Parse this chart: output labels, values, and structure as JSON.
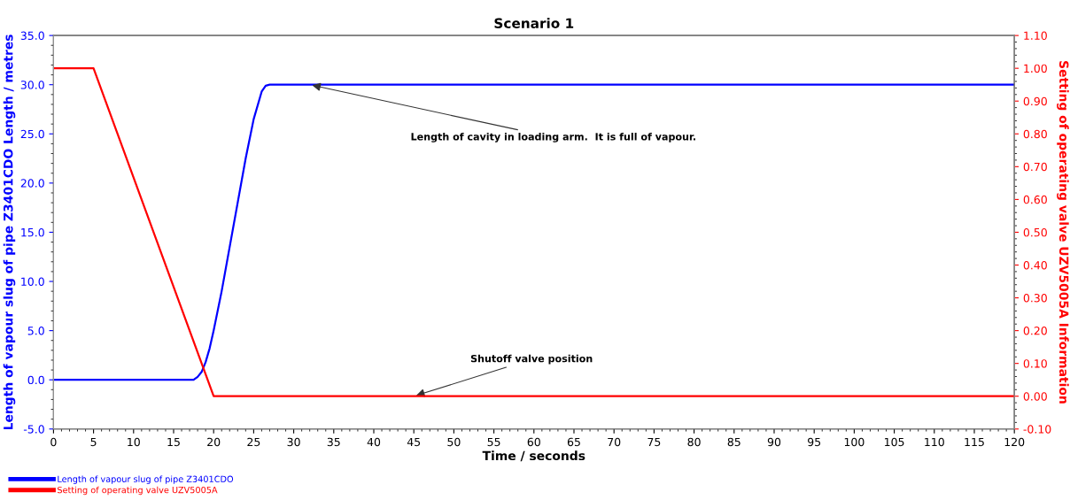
{
  "chart_data": {
    "type": "line",
    "title": "Scenario 1",
    "xlabel": "Time / seconds",
    "ylabel": "Length of vapour slug of pipe Z3401CDO Length / metres",
    "y2label": "Setting of operating valve UZV5005A Information",
    "series": [
      {
        "name": "Length of vapour slug of pipe Z3401CDO",
        "color": "#0000ff",
        "x": [
          0,
          17.5,
          18,
          18.5,
          19,
          19.5,
          20,
          21,
          22,
          23,
          24,
          25,
          26,
          26.5,
          27,
          120
        ],
        "values": [
          0,
          0,
          0.3,
          0.8,
          1.8,
          3.2,
          5,
          9,
          13.5,
          18,
          22.5,
          26.5,
          29.3,
          29.9,
          30,
          30
        ]
      },
      {
        "name": "Setting of operating valve UZV5005A",
        "color": "#ff0000",
        "axis": "y2",
        "x": [
          0,
          5,
          20,
          120
        ],
        "values": [
          1.0,
          1.0,
          0,
          0
        ]
      }
    ],
    "xlim": [
      0,
      120
    ],
    "xticks": [
      0,
      5,
      10,
      15,
      20,
      25,
      30,
      35,
      40,
      45,
      50,
      55,
      60,
      65,
      70,
      75,
      80,
      85,
      90,
      95,
      100,
      105,
      110,
      115,
      120
    ],
    "ylim": [
      -5,
      35
    ],
    "yticks": [
      {
        "value": -5,
        "label": "-5.0"
      },
      {
        "value": 0,
        "label": "0.0"
      },
      {
        "value": 5,
        "label": "5.0"
      },
      {
        "value": 10,
        "label": "10.0"
      },
      {
        "value": 15,
        "label": "15.0"
      },
      {
        "value": 20,
        "label": "20.0"
      },
      {
        "value": 25,
        "label": "25.0"
      },
      {
        "value": 30,
        "label": "30.0"
      },
      {
        "value": 35,
        "label": "35.0"
      }
    ],
    "y2lim": [
      -0.1,
      1.1
    ],
    "y2ticks": [
      {
        "value": -0.1,
        "label": "-0.10"
      },
      {
        "value": 0,
        "label": "0.00"
      },
      {
        "value": 0.1,
        "label": "0.10"
      },
      {
        "value": 0.2,
        "label": "0.20"
      },
      {
        "value": 0.3,
        "label": "0.30"
      },
      {
        "value": 0.4,
        "label": "0.40"
      },
      {
        "value": 0.5,
        "label": "0.50"
      },
      {
        "value": 0.6,
        "label": "0.60"
      },
      {
        "value": 0.7,
        "label": "0.70"
      },
      {
        "value": 0.8,
        "label": "0.80"
      },
      {
        "value": 0.9,
        "label": "0.90"
      },
      {
        "value": 1.0,
        "label": "1.00"
      },
      {
        "value": 1.1,
        "label": "1.10"
      }
    ],
    "annotations": [
      {
        "text": "Length of cavity in loading arm.  It is full of vapour.",
        "x": 32,
        "y": 30
      },
      {
        "text": "Shutoff valve position",
        "x": 45,
        "y": -1.67
      }
    ],
    "grid": false,
    "legend": "bottom",
    "marker": "none",
    "line_style": "solid"
  }
}
